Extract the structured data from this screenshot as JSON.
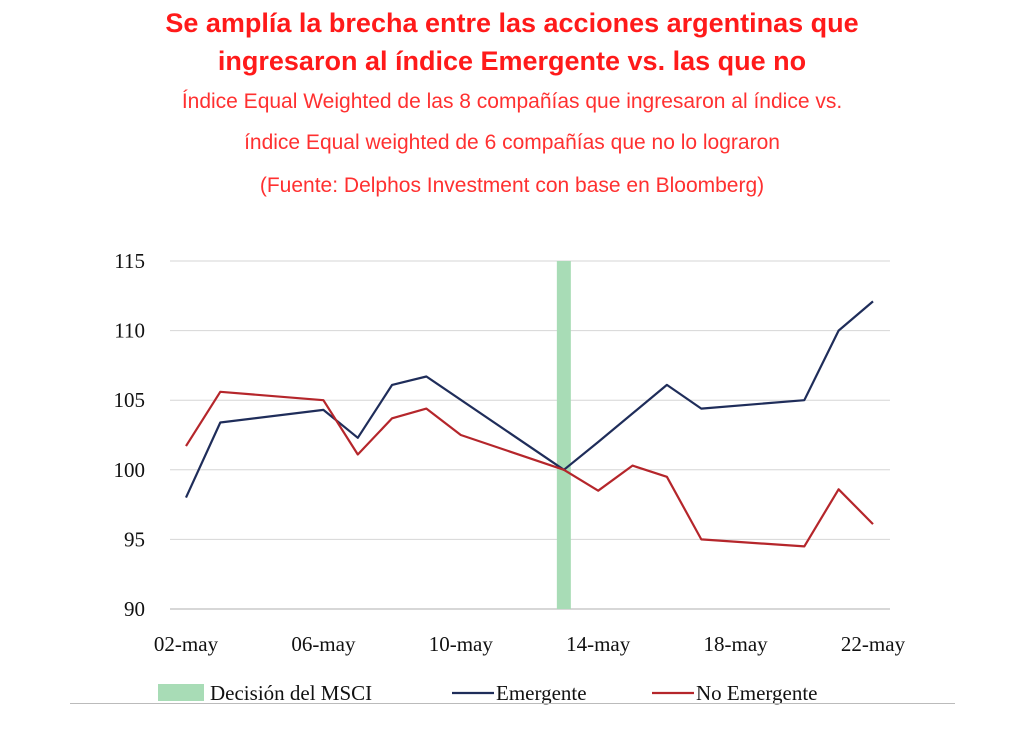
{
  "header": {
    "title_line1": "Se amplía la brecha entre las acciones argentinas que",
    "title_line2": "ingresaron al índice Emergente vs. las que no",
    "subtitle_line1": "Índice Equal Weighted de las 8 compañías que ingresaron al índice vs.",
    "subtitle_line2": "índice Equal weighted de 6 compañías que no lo lograron",
    "subtitle_line3": "(Fuente: Delphos Investment con base en Bloomberg)"
  },
  "colors": {
    "title": "#ff1a1a",
    "emergente": "#1f2d5a",
    "no_emergente": "#b5262b",
    "msci_band": "#a8dcb6",
    "grid": "#d6d6d6"
  },
  "chart_data": {
    "type": "line",
    "xlim": [
      "2018-05-02",
      "2018-05-22"
    ],
    "ylim": [
      90,
      115
    ],
    "y_ticks": [
      90,
      95,
      100,
      105,
      110,
      115
    ],
    "x_ticks": [
      {
        "date": "2018-05-02",
        "label": "02-may"
      },
      {
        "date": "2018-05-06",
        "label": "06-may"
      },
      {
        "date": "2018-05-10",
        "label": "10-may"
      },
      {
        "date": "2018-05-14",
        "label": "14-may"
      },
      {
        "date": "2018-05-18",
        "label": "18-may"
      },
      {
        "date": "2018-05-22",
        "label": "22-may"
      }
    ],
    "grid": true,
    "legend_position": "bottom",
    "msci_decision": {
      "name": "Decisión del MSCI",
      "date": "2018-05-13"
    },
    "series": [
      {
        "name": "Emergente",
        "color": "#1f2d5a",
        "points": [
          [
            "2018-05-02",
            98.0
          ],
          [
            "2018-05-03",
            103.4
          ],
          [
            "2018-05-06",
            104.3
          ],
          [
            "2018-05-07",
            102.3
          ],
          [
            "2018-05-08",
            106.1
          ],
          [
            "2018-05-09",
            106.7
          ],
          [
            "2018-05-13",
            100.0
          ],
          [
            "2018-05-14",
            102.0
          ],
          [
            "2018-05-16",
            106.1
          ],
          [
            "2018-05-17",
            104.4
          ],
          [
            "2018-05-20",
            105.0
          ],
          [
            "2018-05-21",
            110.0
          ],
          [
            "2018-05-22",
            112.1
          ]
        ]
      },
      {
        "name": "No Emergente",
        "color": "#b5262b",
        "points": [
          [
            "2018-05-02",
            101.7
          ],
          [
            "2018-05-03",
            105.6
          ],
          [
            "2018-05-06",
            105.0
          ],
          [
            "2018-05-07",
            101.1
          ],
          [
            "2018-05-08",
            103.7
          ],
          [
            "2018-05-09",
            104.4
          ],
          [
            "2018-05-10",
            102.5
          ],
          [
            "2018-05-13",
            100.0
          ],
          [
            "2018-05-14",
            98.5
          ],
          [
            "2018-05-15",
            100.3
          ],
          [
            "2018-05-16",
            99.5
          ],
          [
            "2018-05-17",
            95.0
          ],
          [
            "2018-05-20",
            94.5
          ],
          [
            "2018-05-21",
            98.6
          ],
          [
            "2018-05-22",
            96.1
          ]
        ]
      }
    ]
  }
}
